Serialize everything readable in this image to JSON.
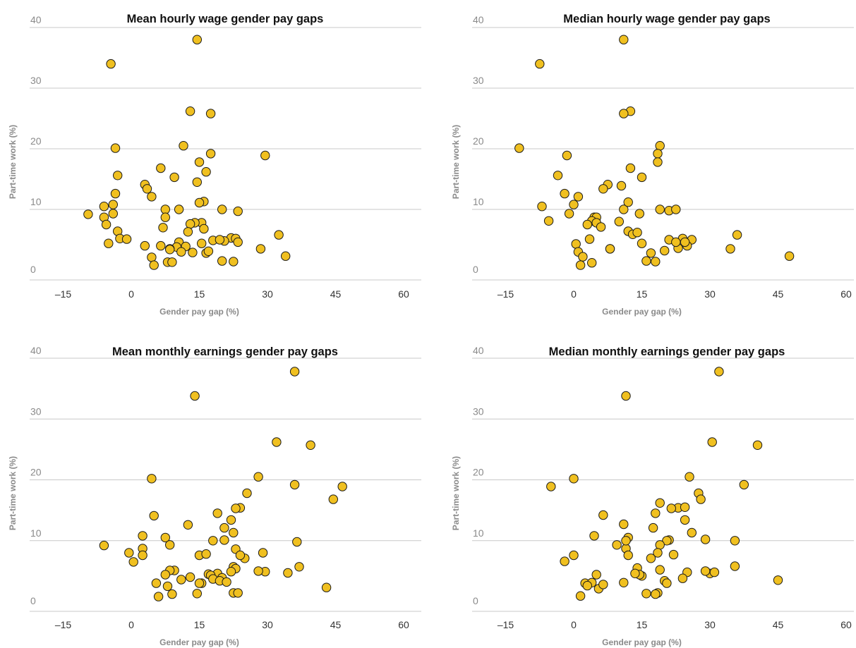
{
  "colors": {
    "dot_fill": "#f0c020",
    "dot_stroke": "#1a1a1a",
    "grid": "#c8c8c8"
  },
  "chart_data": [
    {
      "type": "scatter",
      "title": "Mean hourly wage gender pay gaps",
      "xlabel": "Gender pay gap (%)",
      "ylabel": "Part-time work (%)",
      "xlim": [
        -20,
        64
      ],
      "ylim": [
        -2,
        40
      ],
      "xticks": [
        "–15",
        "0",
        "15",
        "30",
        "45",
        "60"
      ],
      "yticks": [
        "0",
        "10",
        "20",
        "30",
        "40"
      ],
      "grid": "horizontal",
      "x": [
        -4.5,
        14.5,
        13,
        17.5,
        11.5,
        29.5,
        -3.5,
        -3,
        15,
        16.5,
        9.5,
        17.5,
        6.5,
        3,
        3.5,
        14.5,
        16,
        15,
        4.5,
        -3.5,
        -6,
        -4,
        7.5,
        7.5,
        10.5,
        -4,
        20,
        23.5,
        -9.5,
        -6,
        -5.5,
        7,
        15.5,
        14,
        -3,
        16,
        13,
        12.5,
        -2.5,
        -1,
        22,
        20.5,
        18,
        19.5,
        23,
        23.5,
        10.5,
        -5,
        3,
        12,
        10,
        8.5,
        32.5,
        15.5,
        16.5,
        6.5,
        11,
        13.5,
        17,
        8.5,
        28.5,
        34,
        4.5,
        20,
        22.5,
        8,
        9,
        5
      ],
      "y": [
        34,
        38,
        26.2,
        25.8,
        20.5,
        18.9,
        20.1,
        15.6,
        17.8,
        16.2,
        15.3,
        19.2,
        16.8,
        14.1,
        13.4,
        14.5,
        11.3,
        11.1,
        12.1,
        12.6,
        10.5,
        10.8,
        10,
        8.7,
        10,
        9.3,
        10,
        9.7,
        9.2,
        8.7,
        7.5,
        7,
        7.8,
        7.8,
        6.4,
        6.8,
        7.6,
        6.3,
        5.2,
        5.1,
        5.3,
        4.8,
        4.9,
        5,
        5.2,
        4.6,
        4.6,
        4.4,
        4,
        3.9,
        3.8,
        3.5,
        5.8,
        4.4,
        2.8,
        4,
        3,
        2.9,
        3.1,
        3.4,
        3.5,
        2.3,
        2.1,
        1.5,
        1.4,
        1.3,
        1.3,
        0.8
      ]
    },
    {
      "type": "scatter",
      "title": "Median hourly wage gender pay gaps",
      "xlabel": "Gender pay gap (%)",
      "ylabel": "Part-time work (%)",
      "xlim": [
        -20,
        64
      ],
      "ylim": [
        -2,
        40
      ],
      "xticks": [
        "–15",
        "0",
        "15",
        "30",
        "45",
        "60"
      ],
      "yticks": [
        "0",
        "10",
        "20",
        "30",
        "40"
      ],
      "grid": "horizontal",
      "x": [
        -7.5,
        11,
        12.5,
        11,
        -12,
        -1.5,
        19,
        18.5,
        -3.5,
        15,
        12.5,
        10.5,
        7.5,
        6.5,
        1,
        -2,
        18.5,
        11,
        12,
        19,
        21,
        22.5,
        -5.5,
        0,
        -1,
        14.5,
        4.5,
        5,
        -7,
        10,
        4,
        3,
        5,
        6,
        36,
        34.5,
        26,
        24,
        21,
        12,
        13,
        17,
        14,
        8,
        23,
        25,
        20,
        22.5,
        24.5,
        0.5,
        8,
        1,
        3.5,
        15,
        16,
        2,
        18,
        4,
        47.5,
        1.5
      ],
      "y": [
        34,
        38,
        26.2,
        25.8,
        20.1,
        18.9,
        20.5,
        19.2,
        15.6,
        15.3,
        16.8,
        13.9,
        14.1,
        13.4,
        12.1,
        12.6,
        17.8,
        10,
        11.2,
        10,
        9.8,
        10,
        8.1,
        10.8,
        9.3,
        9.3,
        8.7,
        8.7,
        10.5,
        8,
        8.1,
        7.5,
        7.8,
        7.1,
        5.8,
        3.5,
        5,
        5.2,
        5,
        6.4,
        5.9,
        2.8,
        6.2,
        3.5,
        3.6,
        4,
        3.2,
        4.6,
        4.6,
        4.3,
        3.5,
        3,
        5.1,
        4.4,
        1.5,
        2.2,
        1.4,
        1.2,
        2.3,
        0.8
      ]
    },
    {
      "type": "scatter",
      "title": "Mean monthly earnings gender pay gaps",
      "xlabel": "Gender pay gap (%)",
      "ylabel": "Part-time work (%)",
      "xlim": [
        -20,
        64
      ],
      "ylim": [
        -2,
        40
      ],
      "xticks": [
        "–15",
        "0",
        "15",
        "30",
        "45",
        "60"
      ],
      "yticks": [
        "0",
        "10",
        "20",
        "30",
        "40"
      ],
      "grid": "horizontal",
      "x": [
        14,
        36,
        32,
        39.5,
        4.5,
        28,
        36,
        46.5,
        44.5,
        25.5,
        5,
        12.5,
        24,
        23,
        19,
        22,
        20.5,
        7.5,
        36.5,
        18,
        20.5,
        22.5,
        2.5,
        8.5,
        29,
        -6,
        -0.5,
        2.5,
        2.5,
        23,
        15,
        25,
        24,
        9.5,
        16.5,
        8.5,
        11,
        0.5,
        13,
        37,
        22.5,
        34.5,
        23,
        22,
        29.5,
        28,
        7.5,
        18.5,
        17,
        19,
        17.5,
        20,
        18,
        19.5,
        21,
        15.5,
        5.5,
        15,
        9,
        8,
        43,
        14.5,
        22.5,
        23.5,
        6
      ],
      "y": [
        33.8,
        37.8,
        26.2,
        25.7,
        20.2,
        20.5,
        19.2,
        18.9,
        16.8,
        17.8,
        14.1,
        12.6,
        15.4,
        15.3,
        14.5,
        13.4,
        12.1,
        10.5,
        9.8,
        10,
        10.1,
        11.3,
        10.8,
        9.3,
        8,
        9.2,
        8,
        8.7,
        7.6,
        8.6,
        7.6,
        7.1,
        7.6,
        5.1,
        7.8,
        5.1,
        3.6,
        6.5,
        4,
        5.7,
        5.7,
        4.7,
        5.4,
        4.9,
        4.9,
        5,
        4.4,
        4.2,
        4.5,
        4.6,
        4.3,
        3.9,
        3.7,
        3.4,
        3.2,
        3,
        3,
        3,
        1.2,
        2.5,
        2.3,
        1.3,
        1.4,
        1.4,
        0.8
      ]
    },
    {
      "type": "scatter",
      "title": "Median monthly earnings gender pay gaps",
      "xlabel": "Gender pay gap (%)",
      "ylabel": "Part-time work (%)",
      "xlim": [
        -20,
        64
      ],
      "ylim": [
        -2,
        40
      ],
      "xticks": [
        "–15",
        "0",
        "15",
        "30",
        "45",
        "60"
      ],
      "yticks": [
        "0",
        "10",
        "20",
        "30",
        "40"
      ],
      "grid": "horizontal",
      "x": [
        11.5,
        32,
        30.5,
        40.5,
        25.5,
        0,
        -5,
        37.5,
        27.5,
        28,
        19,
        23,
        24.5,
        21.5,
        24.5,
        11,
        17.5,
        18,
        6.5,
        35.5,
        29,
        21,
        20.5,
        26,
        0,
        11.5,
        12,
        19,
        4.5,
        11.5,
        12,
        18.5,
        22,
        35.5,
        30,
        31,
        19,
        17,
        14,
        2.5,
        5,
        15,
        14.5,
        13.5,
        20,
        25,
        24,
        4,
        9.5,
        3,
        1.5,
        5.5,
        20.5,
        -2,
        11,
        6.5,
        45,
        16,
        18.5,
        18,
        29
      ],
      "y": [
        33.8,
        37.8,
        26.2,
        25.7,
        20.5,
        20.2,
        18.9,
        19.2,
        17.8,
        16.8,
        16.2,
        15.4,
        15.5,
        15.3,
        13.4,
        12.7,
        12.1,
        14.5,
        14.2,
        10,
        10.2,
        10.1,
        10,
        11.3,
        7.6,
        8.7,
        10.5,
        9.3,
        10.8,
        10,
        7.6,
        8,
        7.7,
        5.8,
        4.6,
        4.8,
        5.2,
        7.1,
        5.5,
        3,
        4.4,
        4.2,
        4.4,
        4.6,
        3.4,
        4.8,
        3.8,
        3.1,
        9.3,
        2.6,
        0.9,
        2.1,
        3,
        6.6,
        3.1,
        2.8,
        3.5,
        1.3,
        1.4,
        1.2,
        5
      ]
    }
  ]
}
